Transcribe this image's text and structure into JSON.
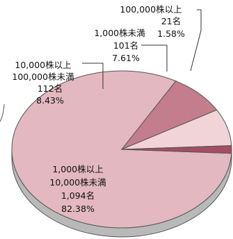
{
  "chart_data": {
    "type": "pie",
    "style": "3d",
    "slices": [
      {
        "category": "1,000株以上",
        "category2": "10,000株未満",
        "count": "1,094名",
        "percent_label": "82.38%",
        "value": 82.38,
        "color": "#e3b8c0"
      },
      {
        "category": "10,000株以上",
        "category2": "100,000株未満",
        "count": "112名",
        "percent_label": "8.43%",
        "value": 8.43,
        "color": "#c47d8c"
      },
      {
        "category": "1,000株未満",
        "category2": "",
        "count": "101名",
        "percent_label": "7.61%",
        "value": 7.61,
        "color": "#f0d4d8"
      },
      {
        "category": "100,000株以上",
        "category2": "",
        "count": "21名",
        "percent_label": "1.58%",
        "value": 1.58,
        "color": "#a54d63"
      }
    ],
    "side_color": "#b9b9b9",
    "outline_color": "#555555"
  }
}
